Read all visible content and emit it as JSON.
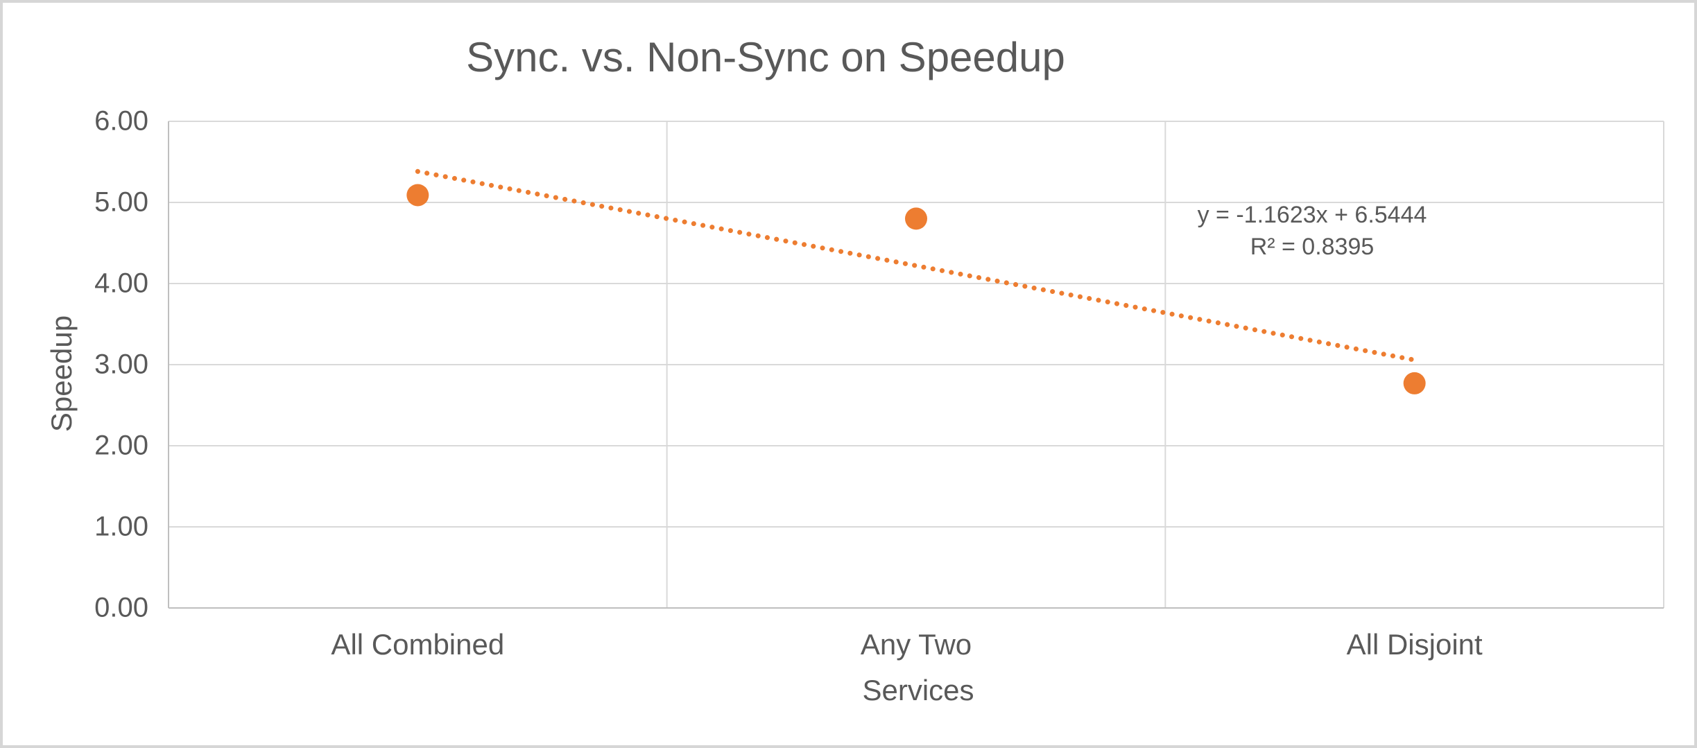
{
  "window": {
    "background": "#FFFFFF",
    "border_color": "#D6D6D6"
  },
  "chart_data": {
    "type": "scatter",
    "title": "Sync. vs. Non-Sync on Speedup",
    "xlabel": "Services",
    "ylabel": "Speedup",
    "categories": [
      "All Combined",
      "Any Two",
      "All Disjoint"
    ],
    "x": [
      1,
      2,
      3
    ],
    "values": [
      5.09,
      4.8,
      2.77
    ],
    "ylim": [
      0,
      6
    ],
    "ytick_labels": [
      "0.00",
      "1.00",
      "2.00",
      "3.00",
      "4.00",
      "5.00",
      "6.00"
    ],
    "grid": true,
    "legend": "none",
    "marker_radius_px": 16,
    "series_color": "#ED7D31",
    "text_color": "#595959",
    "gridline_color": "#D9D9D9",
    "axis_line_color": "#BFBFBF",
    "trendline": {
      "type": "linear",
      "slope": -1.1623,
      "intercept": 6.5444,
      "x_range": [
        1,
        3
      ],
      "style": "dotted",
      "color": "#ED7D31",
      "equation_label": "y = -1.1623x + 6.5444",
      "r_squared_label": "R² = 0.8395"
    }
  }
}
